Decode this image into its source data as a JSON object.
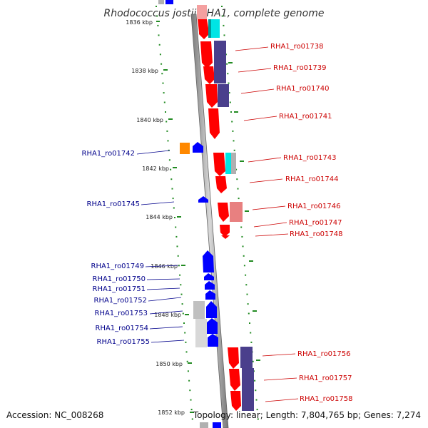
{
  "title": "Rhodococcus jostii RHA1, complete genome",
  "accession": "Accession: NC_008268",
  "topology": "Topology: linear; Length: 7,804,765 bp; Genes: 7,274",
  "colors": {
    "forward_gene": "#ff0000",
    "reverse_gene": "#0000ff",
    "orange_gene": "#ff8800",
    "cyan_feature": "#00e5e5",
    "purple_feature": "#4a3f8c",
    "grey_feature": "#b0b0b0",
    "pink_feature": "#e88080",
    "forward_label": "#cc0000",
    "reverse_label": "#00008b",
    "scale_dot": "#228B22"
  },
  "scale_labels": [
    "1836 kbp",
    "1838 kbp",
    "1840 kbp",
    "1842 kbp",
    "1844 kbp",
    "1846 kbp",
    "1848 kbp",
    "1850 kbp",
    "1852 kbp"
  ],
  "forward_labels": [
    "RHA1_ro01738",
    "RHA1_ro01739",
    "RHA1_ro01740",
    "RHA1_ro01741",
    "RHA1_ro01743",
    "RHA1_ro01744",
    "RHA1_ro01746",
    "RHA1_ro01747",
    "RHA1_ro01748",
    "RHA1_ro01756",
    "RHA1_ro01757",
    "RHA1_ro01758"
  ],
  "reverse_labels": [
    "RHA1_ro01742",
    "RHA1_ro01745",
    "RHA1_ro01749",
    "RHA1_ro01750",
    "RHA1_ro01751",
    "RHA1_ro01752",
    "RHA1_ro01753",
    "RHA1_ro01754",
    "RHA1_ro01755"
  ]
}
